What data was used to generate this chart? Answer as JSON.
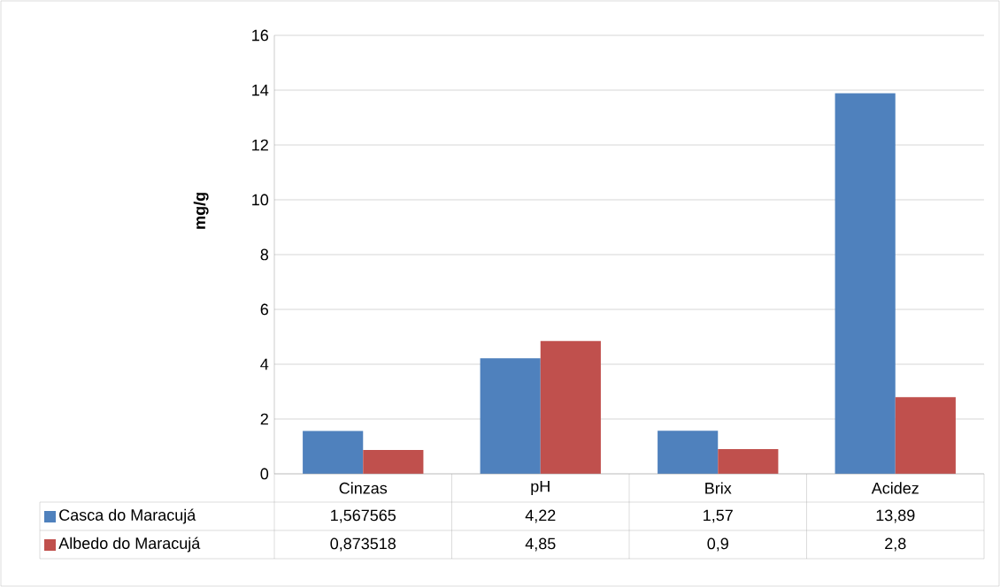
{
  "chart_data": {
    "type": "bar",
    "ylabel": "mg/g",
    "categories": [
      "Cinzas",
      "pH",
      "Brix",
      "Acidez"
    ],
    "series": [
      {
        "name": "Casca do Maracujá",
        "color": "#4f81bd",
        "values": [
          1.567565,
          4.22,
          1.57,
          13.89
        ],
        "value_labels": [
          "1,567565",
          "4,22",
          "1,57",
          "13,89"
        ]
      },
      {
        "name": "Albedo do Maracujá",
        "color": "#c0504d",
        "values": [
          0.873518,
          4.85,
          0.9,
          2.8
        ],
        "value_labels": [
          "0,873518",
          "4,85",
          "0,9",
          "2,8"
        ]
      }
    ],
    "ylim": [
      0,
      16
    ],
    "yticks": [
      0,
      2,
      4,
      6,
      8,
      10,
      12,
      14,
      16
    ],
    "grid": "y",
    "legend": "bottom"
  }
}
